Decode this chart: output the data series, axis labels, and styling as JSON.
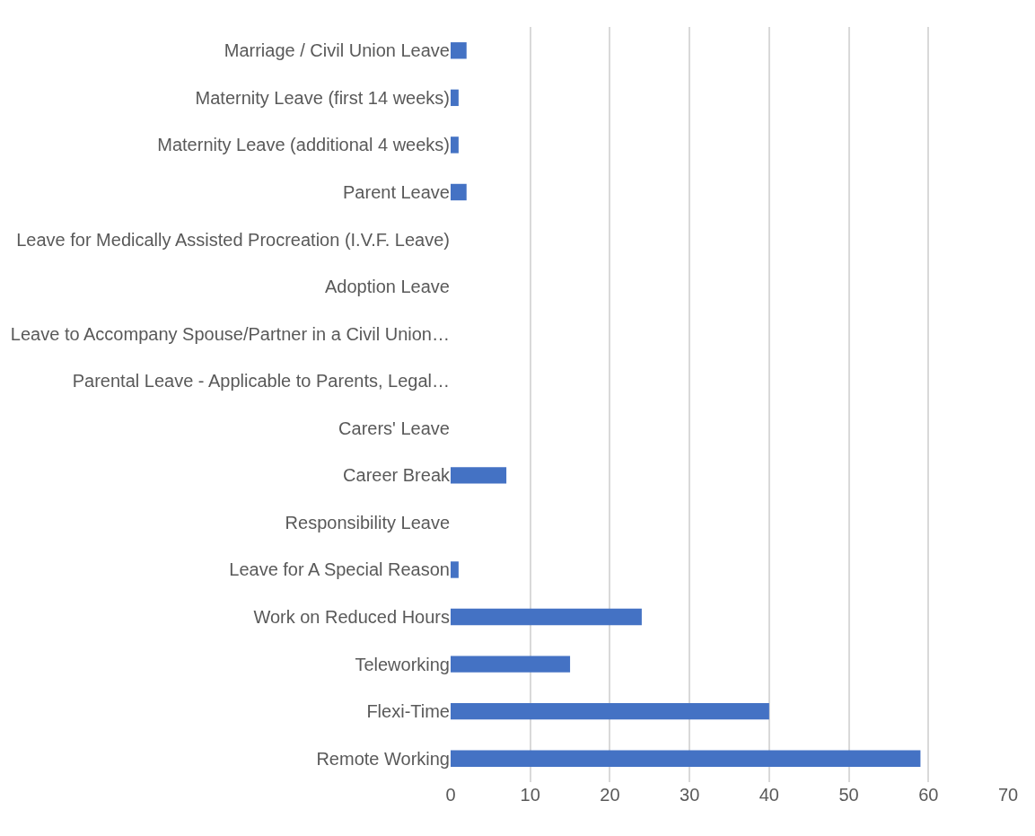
{
  "chart_data": {
    "type": "bar",
    "orientation": "horizontal",
    "categories": [
      "Marriage / Civil Union Leave",
      "Maternity Leave (first 14 weeks)",
      "Maternity Leave (additional 4 weeks)",
      "Parent Leave",
      "Leave for Medically Assisted Procreation (I.V.F. Leave)",
      "Adoption Leave",
      "Leave to Accompany Spouse/Partner in a Civil Union…",
      "Parental Leave - Applicable to Parents, Legal…",
      "Carers' Leave",
      "Career Break",
      "Responsibility Leave",
      "Leave for A Special Reason",
      "Work on Reduced Hours",
      "Teleworking",
      "Flexi-Time",
      "Remote Working"
    ],
    "values": [
      2,
      1,
      1,
      2,
      0,
      0,
      0,
      0,
      0,
      7,
      0,
      1,
      24,
      15,
      40,
      59
    ],
    "color": "#4472c4",
    "xlim": [
      0,
      70
    ],
    "xticks": [
      0,
      10,
      20,
      30,
      40,
      50,
      60,
      70
    ],
    "grid": "x",
    "legend": false
  }
}
